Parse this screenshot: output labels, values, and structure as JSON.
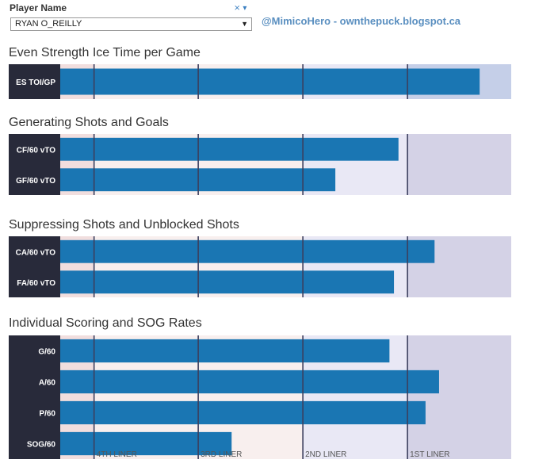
{
  "filter": {
    "label": "Player Name",
    "selected": "RYAN O_REILLY",
    "icons": [
      "filter-clear-icon",
      "dropdown-menu-icon"
    ]
  },
  "credit": "@MimicoHero - ownthepuck.blogspot.ca",
  "sections": [
    {
      "title": "Even Strength Ice Time per Game"
    },
    {
      "title": "Generating Shots and Goals"
    },
    {
      "title": "Suppressing Shots and Unblocked Shots"
    },
    {
      "title": "Individual Scoring and SOG Rates"
    }
  ],
  "colors": {
    "bar": "#1a76b3",
    "label_bg": "#282a3a",
    "band_4th": "#f1dede",
    "band_3rd": "#f8efee",
    "band_2nd": "#e9e8f5",
    "band_1st": "#d4d2e6",
    "band_1st_highlight": "#c5cfe8",
    "divider": "#3c3f5e"
  },
  "chart_data": {
    "type": "bar",
    "orientation": "horizontal",
    "panels": [
      {
        "section": 0,
        "categories": [
          "ES TOI/GP"
        ],
        "values": [
          93
        ]
      },
      {
        "section": 1,
        "categories": [
          "CF/60 vTO",
          "GF/60 vTO"
        ],
        "values": [
          75,
          61
        ]
      },
      {
        "section": 2,
        "categories": [
          "CA/60 vTO",
          "FA/60 vTO"
        ],
        "values": [
          83,
          74
        ]
      },
      {
        "section": 3,
        "categories": [
          "G/60",
          "A/60",
          "P/60",
          "SOG/60"
        ],
        "values": [
          73,
          84,
          81,
          38
        ]
      }
    ],
    "xlim": [
      0,
      100
    ],
    "tier_thresholds": [
      7.5,
      30.6,
      53.8,
      77
    ],
    "tier_labels": [
      "4TH LINER",
      "3RD LINER",
      "2ND LINER",
      "1ST LINER"
    ],
    "grid": true,
    "legend": "none"
  }
}
